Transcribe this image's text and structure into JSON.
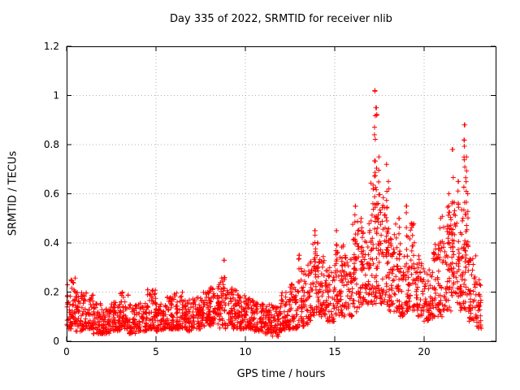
{
  "chart_data": {
    "type": "scatter",
    "title": "Day 335 of 2022, SRMTID for receiver nlib",
    "xlabel": "GPS time / hours",
    "ylabel": "SRMTID / TECUs",
    "xlim": [
      0,
      24
    ],
    "ylim": [
      0,
      1.2
    ],
    "x_ticks": [
      0,
      5,
      10,
      15,
      20
    ],
    "x_tick_labels": [
      "0",
      "5",
      "10",
      "15",
      "20"
    ],
    "y_ticks": [
      0,
      0.2,
      0.4,
      0.6,
      0.8,
      1.0,
      1.2
    ],
    "y_tick_labels": [
      "0",
      "0.2",
      "0.4",
      "0.6",
      "0.8",
      "1",
      "1.2"
    ],
    "grid": true,
    "legend": "none",
    "marker": {
      "shape": "plus",
      "color": "#ff0000",
      "size": 7
    },
    "series_name": "SRMTID",
    "seed": 1335,
    "baseline_segments_format": [
      "x_start",
      "x_end",
      "count",
      "y_min",
      "y_max"
    ],
    "baseline_segments": [
      [
        0,
        0.5,
        60,
        0.05,
        0.26
      ],
      [
        0.5,
        1,
        55,
        0.04,
        0.2
      ],
      [
        1,
        1.5,
        55,
        0.05,
        0.2
      ],
      [
        1.5,
        2,
        50,
        0.03,
        0.16
      ],
      [
        2,
        2.5,
        50,
        0.03,
        0.14
      ],
      [
        2.5,
        3,
        50,
        0.04,
        0.16
      ],
      [
        3,
        3.5,
        55,
        0.05,
        0.2
      ],
      [
        3.5,
        4,
        50,
        0.03,
        0.15
      ],
      [
        4,
        4.5,
        50,
        0.04,
        0.16
      ],
      [
        4.5,
        5,
        55,
        0.05,
        0.22
      ],
      [
        5,
        5.5,
        50,
        0.04,
        0.16
      ],
      [
        5.5,
        6,
        55,
        0.05,
        0.18
      ],
      [
        6,
        6.5,
        55,
        0.05,
        0.2
      ],
      [
        6.5,
        7,
        50,
        0.04,
        0.17
      ],
      [
        7,
        7.5,
        55,
        0.05,
        0.18
      ],
      [
        7.5,
        8,
        55,
        0.06,
        0.2
      ],
      [
        8,
        8.5,
        55,
        0.06,
        0.22
      ],
      [
        8.5,
        9,
        55,
        0.05,
        0.26
      ],
      [
        9,
        9.5,
        55,
        0.05,
        0.22
      ],
      [
        9.5,
        10,
        55,
        0.05,
        0.2
      ],
      [
        10,
        10.5,
        55,
        0.05,
        0.18
      ],
      [
        10.5,
        11,
        50,
        0.04,
        0.16
      ],
      [
        11,
        11.5,
        50,
        0.03,
        0.15
      ],
      [
        11.5,
        12,
        50,
        0.02,
        0.14
      ],
      [
        12,
        12.5,
        55,
        0.04,
        0.2
      ],
      [
        12.5,
        13,
        55,
        0.05,
        0.25
      ],
      [
        13,
        13.5,
        50,
        0.06,
        0.3
      ],
      [
        13.5,
        14,
        55,
        0.08,
        0.4
      ],
      [
        14,
        14.5,
        55,
        0.1,
        0.35
      ],
      [
        14.5,
        15,
        50,
        0.08,
        0.3
      ],
      [
        15,
        15.5,
        55,
        0.1,
        0.4
      ],
      [
        15.5,
        16,
        50,
        0.1,
        0.35
      ],
      [
        16,
        16.5,
        55,
        0.12,
        0.5
      ],
      [
        16.5,
        17,
        55,
        0.15,
        0.5
      ],
      [
        17,
        17.5,
        60,
        0.15,
        0.65
      ],
      [
        17.5,
        18,
        55,
        0.15,
        0.6
      ],
      [
        18,
        18.5,
        55,
        0.12,
        0.5
      ],
      [
        18.5,
        19,
        50,
        0.1,
        0.4
      ],
      [
        19,
        19.5,
        55,
        0.12,
        0.5
      ],
      [
        19.5,
        20,
        50,
        0.1,
        0.35
      ],
      [
        20,
        20.5,
        50,
        0.08,
        0.3
      ],
      [
        20.5,
        21,
        55,
        0.1,
        0.4
      ],
      [
        21,
        21.5,
        55,
        0.12,
        0.55
      ],
      [
        21.5,
        22,
        55,
        0.15,
        0.6
      ],
      [
        22,
        22.5,
        60,
        0.12,
        0.55
      ],
      [
        22.5,
        22.9,
        45,
        0.08,
        0.35
      ],
      [
        22.9,
        23.2,
        30,
        0.05,
        0.25
      ]
    ],
    "spike_clusters_format": [
      "x_center",
      "count",
      "y_min",
      "y_max"
    ],
    "spike_clusters": [
      [
        8.8,
        6,
        0.2,
        0.33
      ],
      [
        13.0,
        5,
        0.25,
        0.35
      ],
      [
        13.9,
        8,
        0.28,
        0.45
      ],
      [
        14.05,
        5,
        0.26,
        0.4
      ],
      [
        15.1,
        6,
        0.28,
        0.45
      ],
      [
        16.15,
        8,
        0.32,
        0.55
      ],
      [
        16.5,
        6,
        0.3,
        0.5
      ],
      [
        17.25,
        14,
        0.45,
        1.02
      ],
      [
        17.35,
        10,
        0.4,
        0.95
      ],
      [
        17.45,
        8,
        0.35,
        0.75
      ],
      [
        17.9,
        8,
        0.32,
        0.72
      ],
      [
        18.0,
        6,
        0.3,
        0.62
      ],
      [
        18.6,
        5,
        0.28,
        0.5
      ],
      [
        19.0,
        6,
        0.3,
        0.55
      ],
      [
        19.3,
        5,
        0.26,
        0.48
      ],
      [
        20.9,
        5,
        0.28,
        0.5
      ],
      [
        21.4,
        6,
        0.32,
        0.6
      ],
      [
        21.6,
        8,
        0.38,
        0.78
      ],
      [
        21.9,
        6,
        0.32,
        0.65
      ],
      [
        22.25,
        12,
        0.38,
        0.88
      ],
      [
        22.35,
        8,
        0.34,
        0.75
      ],
      [
        22.45,
        6,
        0.3,
        0.6
      ]
    ],
    "peaks_format": [
      "x",
      "y"
    ],
    "peaks": [
      [
        17.25,
        1.02
      ],
      [
        17.3,
        0.95
      ],
      [
        22.25,
        0.88
      ],
      [
        21.6,
        0.78
      ],
      [
        17.9,
        0.72
      ],
      [
        18.0,
        0.65
      ],
      [
        21.9,
        0.65
      ],
      [
        16.15,
        0.55
      ],
      [
        19.0,
        0.55
      ],
      [
        13.9,
        0.45
      ],
      [
        15.1,
        0.45
      ],
      [
        13.0,
        0.35
      ],
      [
        8.8,
        0.33
      ]
    ],
    "colors": {
      "marker": "#ff0000",
      "border": "#000000",
      "grid": "#b0b0b0",
      "text": "#000000",
      "background": "#ffffff"
    }
  }
}
